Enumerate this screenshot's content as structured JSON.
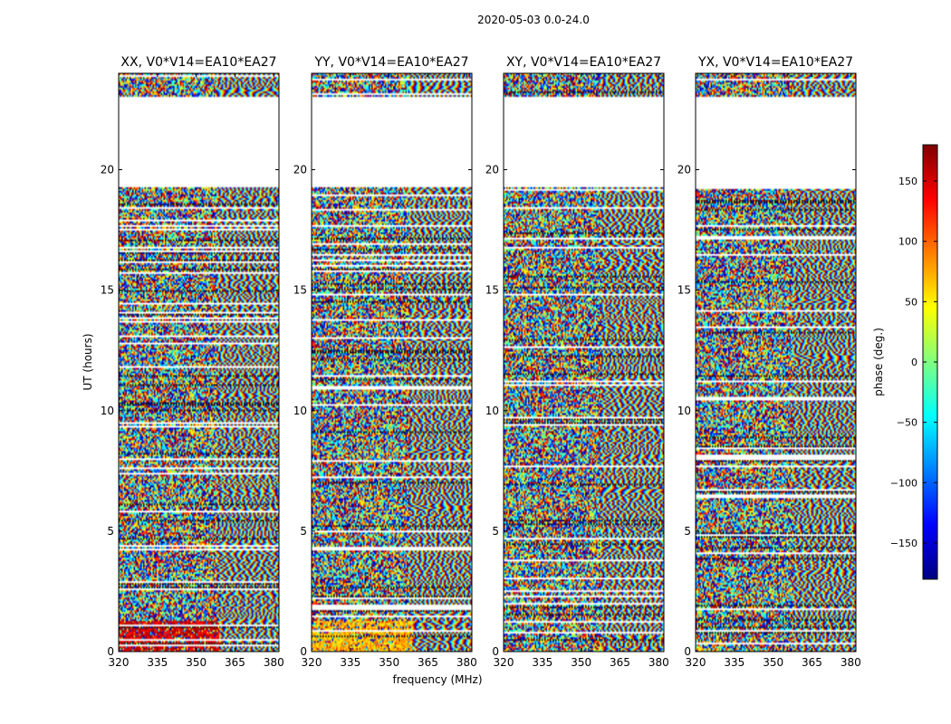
{
  "figure": {
    "suptitle": "2020-05-03 0.0-24.0"
  },
  "chart_data": {
    "type": "heatmap",
    "xlabel": "frequency (MHz)",
    "ylabel": "UT (hours)",
    "xlim": [
      320,
      382
    ],
    "ylim": [
      0,
      24
    ],
    "xticks": [
      320,
      335,
      350,
      365,
      380
    ],
    "yticks": [
      0,
      5,
      10,
      15,
      20
    ],
    "no_data_ut_range": [
      19.3,
      23.0
    ],
    "panels": [
      {
        "title": "XX, V0*V14=EA10*EA27",
        "pol": "XX"
      },
      {
        "title": "YY, V0*V14=EA10*EA27",
        "pol": "YY"
      },
      {
        "title": "XY, V0*V14=EA10*EA27",
        "pol": "XY"
      },
      {
        "title": "YX, V0*V14=EA10*EA27",
        "pol": "YX"
      }
    ],
    "colorbar": {
      "label": "phase (deg.)",
      "range": [
        -180,
        180
      ],
      "ticks": [
        -150,
        -100,
        -50,
        0,
        50,
        100,
        150
      ],
      "tick_labels": [
        "−150",
        "−100",
        "−50",
        "0",
        "50",
        "100",
        "150"
      ],
      "colormap": "jet",
      "colormap_stops": [
        "#00007f",
        "#0000ff",
        "#007fff",
        "#00ffff",
        "#7fff7f",
        "#ffff00",
        "#ff7f00",
        "#ff0000",
        "#7f0000"
      ]
    }
  }
}
